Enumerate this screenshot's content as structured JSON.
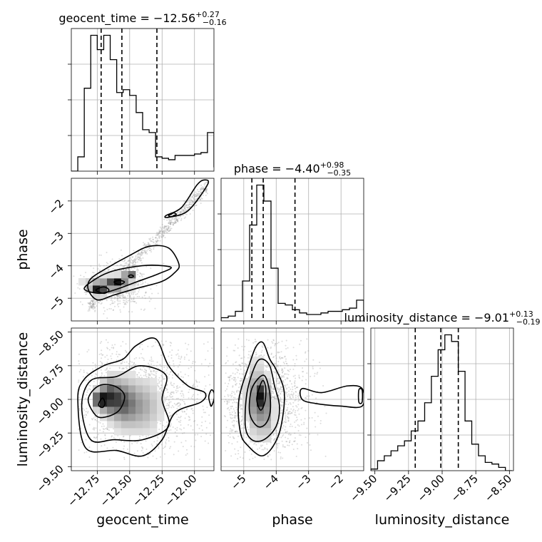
{
  "figure": {
    "type": "corner-plot",
    "colors": {
      "ink": "#000000",
      "grid": "#b0b0b0",
      "density_dark": "#1a1a1a",
      "density_light": "#f3f3f3",
      "samples": "#9a9a9a"
    }
  },
  "chart_data": {
    "type": "corner",
    "parameters": [
      {
        "name": "geocent_time",
        "label": "geocent_time",
        "title_text": "geocent_time = −12.56",
        "title_sup": "+0.27",
        "title_sub": "−0.16",
        "range": [
          -12.95,
          -11.85
        ],
        "ticks": [
          -12.75,
          -12.5,
          -12.25,
          -12.0
        ],
        "tick_labels": [
          "−12.75",
          "−12.50",
          "−12.25",
          "−12.00"
        ],
        "quantiles": [
          -12.72,
          -12.56,
          -12.29
        ],
        "hist_bin_width": 0.05,
        "hist_values": [
          0.0,
          0.1,
          0.58,
          0.95,
          0.85,
          0.95,
          0.78,
          0.55,
          0.57,
          0.53,
          0.41,
          0.29,
          0.27,
          0.1,
          0.09,
          0.08,
          0.11,
          0.11,
          0.11,
          0.12,
          0.13,
          0.27,
          0.03
        ]
      },
      {
        "name": "phase",
        "label": "phase",
        "title_text": "phase = −4.40",
        "title_sup": "+0.98",
        "title_sub": "−0.35",
        "range": [
          -5.7,
          -1.3
        ],
        "ticks": [
          -5,
          -4,
          -3,
          -2
        ],
        "tick_labels": [
          "−5",
          "−4",
          "−3",
          "−2"
        ],
        "quantiles": [
          -4.75,
          -4.4,
          -3.42
        ],
        "hist_bin_width": 0.22,
        "hist_values": [
          0.02,
          0.03,
          0.06,
          0.25,
          0.6,
          0.85,
          0.75,
          0.33,
          0.11,
          0.1,
          0.07,
          0.05,
          0.04,
          0.04,
          0.05,
          0.06,
          0.06,
          0.07,
          0.08,
          0.13
        ]
      },
      {
        "name": "luminosity_distance",
        "label": "luminosity_distance",
        "title_text": "luminosity_distance = −9.01",
        "title_sup": "+0.13",
        "title_sub": "−0.19",
        "range": [
          -9.53,
          -8.47
        ],
        "ticks": [
          -9.5,
          -9.25,
          -9.0,
          -8.75,
          -8.5
        ],
        "tick_labels": [
          "−9.50",
          "−9.25",
          "−9.00",
          "−8.75",
          "−8.50"
        ],
        "quantiles": [
          -9.2,
          -9.01,
          -8.88
        ],
        "hist_bin_width": 0.05,
        "hist_values": [
          0.01,
          0.06,
          0.09,
          0.12,
          0.15,
          0.18,
          0.24,
          0.3,
          0.41,
          0.57,
          0.73,
          0.82,
          0.78,
          0.6,
          0.3,
          0.16,
          0.09,
          0.05,
          0.04,
          0.02,
          0.0
        ]
      }
    ],
    "pairs": [
      {
        "x": "geocent_time",
        "y": "phase",
        "samples": {
          "n": 1500,
          "mode": "line",
          "x_range": [
            -12.82,
            -11.9
          ],
          "y_at_x_min": -5.3,
          "y_at_x_max": -1.55,
          "spread": 0.12,
          "cluster_center": [
            -12.6,
            -4.6
          ],
          "cluster_weight": 0.45,
          "cluster_sd": [
            0.12,
            0.35
          ]
        },
        "density_blobs": [
          [
            -12.74,
            -4.72,
            0.04,
            0.11,
            0.9
          ],
          [
            -12.6,
            -4.53,
            0.04,
            0.1,
            1.0
          ],
          [
            -12.5,
            -4.3,
            0.03,
            0.08,
            0.7
          ],
          [
            -12.66,
            -4.55,
            0.12,
            0.16,
            0.3
          ]
        ],
        "contours": [
          [
            [
              -12.85,
              -4.72
            ],
            [
              -12.73,
              -4.85
            ],
            [
              -12.6,
              -4.72
            ],
            [
              -12.45,
              -4.5
            ],
            [
              -12.28,
              -4.25
            ],
            [
              -12.18,
              -4.05
            ],
            [
              -12.33,
              -3.98
            ],
            [
              -12.5,
              -4.05
            ],
            [
              -12.66,
              -4.2
            ],
            [
              -12.78,
              -4.45
            ]
          ],
          [
            [
              -12.82,
              -4.72
            ],
            [
              -12.75,
              -5.05
            ],
            [
              -12.62,
              -4.9
            ],
            [
              -12.45,
              -4.7
            ],
            [
              -12.25,
              -4.48
            ],
            [
              -12.15,
              -4.2
            ],
            [
              -12.12,
              -3.95
            ],
            [
              -12.2,
              -3.45
            ],
            [
              -12.35,
              -3.4
            ],
            [
              -12.5,
              -3.68
            ],
            [
              -12.68,
              -4.08
            ],
            [
              -12.8,
              -4.4
            ]
          ],
          [
            [
              -12.76,
              -4.75
            ],
            [
              -12.7,
              -4.85
            ],
            [
              -12.66,
              -4.75
            ],
            [
              -12.7,
              -4.65
            ]
          ],
          [
            [
              -12.62,
              -4.5
            ],
            [
              -12.58,
              -4.58
            ],
            [
              -12.54,
              -4.5
            ],
            [
              -12.58,
              -4.45
            ]
          ],
          [
            [
              -12.51,
              -4.32
            ],
            [
              -12.49,
              -4.36
            ],
            [
              -12.47,
              -4.32
            ],
            [
              -12.49,
              -4.28
            ]
          ],
          [
            [
              -12.2,
              -2.5
            ],
            [
              -12.05,
              -2.3
            ],
            [
              -11.9,
              -1.5
            ],
            [
              -11.92,
              -1.35
            ],
            [
              -11.98,
              -1.5
            ],
            [
              -12.1,
              -2.2
            ],
            [
              -12.22,
              -2.45
            ]
          ],
          [
            [
              -12.18,
              -2.49
            ],
            [
              -12.16,
              -2.45
            ],
            [
              -12.14,
              -2.41
            ],
            [
              -12.16,
              -2.37
            ],
            [
              -12.18,
              -2.41
            ],
            [
              -12.2,
              -2.45
            ]
          ]
        ]
      },
      {
        "x": "geocent_time",
        "y": "luminosity_distance",
        "samples": {
          "n": 1600,
          "mode": "cluster",
          "center": [
            -12.45,
            -9.0
          ],
          "sd": [
            0.28,
            0.2
          ],
          "x_range": [
            -12.9,
            -11.85
          ],
          "y_range": [
            -9.45,
            -8.55
          ]
        },
        "density_blobs": [
          [
            -12.73,
            -9.0,
            0.03,
            0.04,
            1.0
          ],
          [
            -12.65,
            -8.98,
            0.05,
            0.08,
            0.75
          ],
          [
            -12.55,
            -9.02,
            0.06,
            0.1,
            0.5
          ],
          [
            -12.42,
            -9.05,
            0.1,
            0.12,
            0.35
          ]
        ],
        "contours": [
          [
            [
              -12.82,
              -9.0
            ],
            [
              -12.76,
              -9.12
            ],
            [
              -12.68,
              -9.13
            ],
            [
              -12.58,
              -9.08
            ],
            [
              -12.54,
              -8.97
            ],
            [
              -12.62,
              -8.9
            ],
            [
              -12.74,
              -8.9
            ]
          ],
          [
            [
              -12.74,
              -9.04
            ],
            [
              -12.71,
              -9.06
            ],
            [
              -12.69,
              -9.03
            ],
            [
              -12.71,
              -8.99
            ]
          ],
          [
            [
              -12.87,
              -9.05
            ],
            [
              -12.8,
              -9.3
            ],
            [
              -12.62,
              -9.3
            ],
            [
              -12.4,
              -9.3
            ],
            [
              -12.2,
              -9.2
            ],
            [
              -12.25,
              -9.0
            ],
            [
              -12.22,
              -8.82
            ],
            [
              -12.42,
              -8.75
            ],
            [
              -12.6,
              -8.83
            ],
            [
              -12.8,
              -8.86
            ]
          ],
          [
            [
              -12.9,
              -9.0
            ],
            [
              -12.84,
              -9.36
            ],
            [
              -12.6,
              -9.38
            ],
            [
              -12.4,
              -9.42
            ],
            [
              -12.25,
              -9.3
            ],
            [
              -12.15,
              -9.1
            ],
            [
              -11.95,
              -9.02
            ],
            [
              -11.92,
              -8.95
            ],
            [
              -12.05,
              -8.9
            ],
            [
              -12.2,
              -8.75
            ],
            [
              -12.3,
              -8.55
            ],
            [
              -12.45,
              -8.6
            ],
            [
              -12.55,
              -8.7
            ],
            [
              -12.7,
              -8.75
            ],
            [
              -12.85,
              -8.85
            ]
          ],
          [
            [
              -11.87,
              -9.05
            ],
            [
              -11.85,
              -9.0
            ],
            [
              -11.85,
              -8.95
            ],
            [
              -11.87,
              -8.93
            ],
            [
              -11.89,
              -8.98
            ],
            [
              -11.88,
              -9.03
            ]
          ]
        ]
      },
      {
        "x": "phase",
        "y": "luminosity_distance",
        "samples": {
          "n": 1600,
          "mode": "cluster",
          "center": [
            -4.4,
            -9.0
          ],
          "sd": [
            0.7,
            0.22
          ],
          "x_range": [
            -5.6,
            -1.35
          ],
          "y_range": [
            -9.45,
            -8.55
          ]
        },
        "density_blobs": [
          [
            -4.42,
            -8.97,
            0.08,
            0.05,
            1.0
          ],
          [
            -4.6,
            -9.0,
            0.2,
            0.15,
            0.5
          ],
          [
            -4.3,
            -9.1,
            0.15,
            0.12,
            0.3
          ]
        ],
        "contours": [
          [
            [
              -4.5,
              -8.9
            ],
            [
              -4.6,
              -9.0
            ],
            [
              -4.48,
              -9.08
            ],
            [
              -4.35,
              -9.02
            ],
            [
              -4.32,
              -8.92
            ],
            [
              -4.4,
              -8.86
            ]
          ],
          [
            [
              -4.75,
              -8.92
            ],
            [
              -4.82,
              -9.1
            ],
            [
              -4.58,
              -9.2
            ],
            [
              -4.32,
              -9.18
            ],
            [
              -4.18,
              -9.08
            ],
            [
              -4.22,
              -8.92
            ],
            [
              -4.4,
              -8.82
            ]
          ],
          [
            [
              -4.65,
              -8.75
            ],
            [
              -4.9,
              -8.95
            ],
            [
              -4.95,
              -9.2
            ],
            [
              -4.75,
              -9.3
            ],
            [
              -4.38,
              -9.3
            ],
            [
              -4.0,
              -9.2
            ],
            [
              -3.9,
              -9.05
            ],
            [
              -4.05,
              -8.9
            ],
            [
              -4.2,
              -8.75
            ],
            [
              -4.45,
              -8.7
            ]
          ],
          [
            [
              -4.8,
              -8.72
            ],
            [
              -5.15,
              -9.0
            ],
            [
              -5.1,
              -9.25
            ],
            [
              -4.85,
              -9.35
            ],
            [
              -4.45,
              -9.42
            ],
            [
              -4.1,
              -9.35
            ],
            [
              -3.85,
              -9.2
            ],
            [
              -3.75,
              -8.95
            ],
            [
              -4.0,
              -8.78
            ],
            [
              -4.2,
              -8.7
            ],
            [
              -4.4,
              -8.58
            ],
            [
              -4.6,
              -8.6
            ]
          ],
          [
            [
              -3.2,
              -8.92
            ],
            [
              -2.6,
              -8.95
            ],
            [
              -1.8,
              -8.9
            ],
            [
              -1.35,
              -8.92
            ],
            [
              -1.35,
              -9.05
            ],
            [
              -2.0,
              -9.05
            ],
            [
              -2.8,
              -9.03
            ],
            [
              -3.2,
              -9.0
            ]
          ],
          [
            [
              -1.45,
              -8.93
            ],
            [
              -1.35,
              -8.93
            ],
            [
              -1.35,
              -9.02
            ],
            [
              -1.45,
              -9.02
            ]
          ]
        ]
      }
    ]
  }
}
